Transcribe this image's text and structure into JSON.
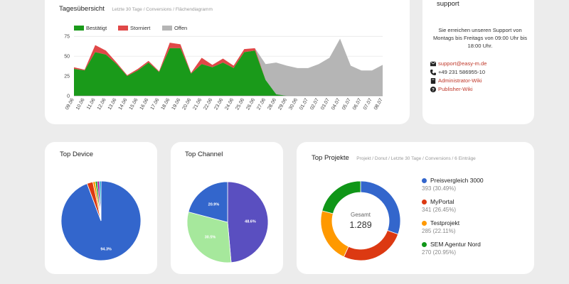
{
  "overview": {
    "title": "Tagesübersicht",
    "subtitle": "Letzte 30 Tage / Conversions / Flächendiagramm",
    "legend": [
      {
        "label": "Bestätigt",
        "color": "#1a9a1a"
      },
      {
        "label": "Storniert",
        "color": "#e04848"
      },
      {
        "label": "Offen",
        "color": "#b5b5b5"
      }
    ]
  },
  "support": {
    "title": "support",
    "text": "Sie erreichen unseren Support von Montags bis Freitags von 09:00 Uhr bis 18:00 Uhr.",
    "email": "support@easy-m.de",
    "phone": "+49 231 586955-10",
    "wiki_admin": "Administrator-Wiki",
    "wiki_publisher": "Publisher-Wiki"
  },
  "device": {
    "title": "Top Device"
  },
  "channel": {
    "title": "Top Channel"
  },
  "projects": {
    "title": "Top Projekte",
    "subtitle": "Projekt / Donut / Letzte 30 Tage / Conversions / 6 Einträge",
    "center_label": "Gesamt",
    "center_value": "1.289",
    "items": [
      {
        "name": "Preisvergleich 3000",
        "value": "393 (30.49%)",
        "color": "#3366cc"
      },
      {
        "name": "MyPortal",
        "value": "341 (26.45%)",
        "color": "#dc3912"
      },
      {
        "name": "Testprojekt",
        "value": "285 (22.11%)",
        "color": "#ff9900"
      },
      {
        "name": "SEM Agentur Nord",
        "value": "270 (20.95%)",
        "color": "#109618"
      }
    ]
  },
  "chart_data": [
    {
      "type": "area",
      "title": "Tagesübersicht",
      "x": [
        "09.06",
        "10.06",
        "11.06",
        "12.06",
        "13.06",
        "14.06",
        "15.06",
        "16.06",
        "17.06",
        "18.06",
        "19.06",
        "20.06",
        "21.06",
        "22.06",
        "23.06",
        "24.06",
        "25.06",
        "26.06",
        "27.06",
        "28.06",
        "29.06",
        "30.06",
        "01.07",
        "02.07",
        "03.07",
        "04.07",
        "05.07",
        "06.07",
        "07.07",
        "08.07"
      ],
      "yticks": [
        0,
        25,
        50,
        75
      ],
      "ylim": [
        0,
        85
      ],
      "series": [
        {
          "name": "Bestätigt",
          "color": "#1a9a1a",
          "values": [
            34,
            32,
            55,
            52,
            40,
            25,
            32,
            42,
            30,
            60,
            60,
            28,
            40,
            36,
            42,
            35,
            55,
            57,
            20,
            2,
            0,
            0,
            0,
            0,
            0,
            0,
            0,
            0,
            0,
            0
          ]
        },
        {
          "name": "Storniert",
          "color": "#e04848",
          "values": [
            2,
            1,
            9,
            5,
            2,
            1,
            2,
            2,
            1,
            7,
            5,
            1,
            8,
            3,
            5,
            3,
            4,
            3,
            0,
            0,
            0,
            0,
            0,
            0,
            0,
            0,
            0,
            0,
            0,
            0
          ]
        },
        {
          "name": "Offen",
          "color": "#b5b5b5",
          "values": [
            0,
            0,
            0,
            0,
            0,
            0,
            0,
            0,
            0,
            0,
            0,
            0,
            0,
            0,
            0,
            0,
            0,
            0,
            20,
            40,
            38,
            35,
            35,
            40,
            48,
            72,
            38,
            32,
            32,
            39
          ]
        }
      ]
    },
    {
      "type": "pie",
      "title": "Top Device",
      "slices": [
        {
          "value": 94.3,
          "color": "#3366cc",
          "label": "94.3%"
        },
        {
          "value": 2.4,
          "color": "#dc3912",
          "label": ""
        },
        {
          "value": 1.0,
          "color": "#ff9900",
          "label": ""
        },
        {
          "value": 0.8,
          "color": "#109618",
          "label": ""
        },
        {
          "value": 0.8,
          "color": "#990099",
          "label": ""
        },
        {
          "value": 0.7,
          "color": "#0099c6",
          "label": ""
        }
      ]
    },
    {
      "type": "pie",
      "title": "Top Channel",
      "slices": [
        {
          "value": 48.6,
          "color": "#5a4fc0",
          "label": "48.6%"
        },
        {
          "value": 30.5,
          "color": "#a6e89c",
          "label": "30.5%"
        },
        {
          "value": 20.9,
          "color": "#3366cc",
          "label": "20.9%"
        }
      ]
    },
    {
      "type": "pie",
      "title": "Top Projekte",
      "slices": [
        {
          "value": 393,
          "color": "#3366cc"
        },
        {
          "value": 341,
          "color": "#dc3912"
        },
        {
          "value": 285,
          "color": "#ff9900"
        },
        {
          "value": 270,
          "color": "#109618"
        }
      ]
    }
  ]
}
